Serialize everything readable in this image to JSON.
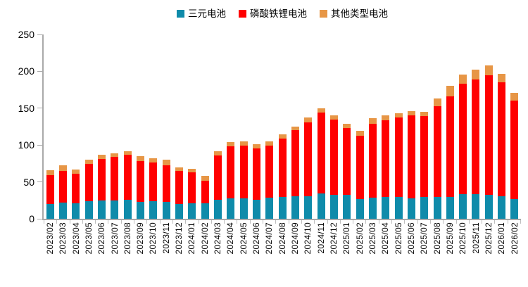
{
  "chart_data": {
    "type": "bar",
    "stacked": true,
    "title": "",
    "xlabel": "",
    "ylabel": "",
    "ylim": [
      0,
      250
    ],
    "yticks": [
      0,
      50,
      100,
      150,
      200,
      250
    ],
    "grid": false,
    "legend_position": "top-center",
    "axis_color": "#a9a9a9",
    "text_color": "#000000",
    "categories": [
      "2023/02",
      "2023/03",
      "2023/04",
      "2023/05",
      "2023/06",
      "2023/07",
      "2023/08",
      "2023/09",
      "2023/10",
      "2023/11",
      "2023/12",
      "2024/01",
      "2024/02",
      "2024/03",
      "2024/04",
      "2024/05",
      "2024/06",
      "2024/07",
      "2024/08",
      "2024/09",
      "2024/10",
      "2024/11",
      "2024/12",
      "2025/01",
      "2025/02",
      "2025/03",
      "2025/04",
      "2025/05",
      "2025/06",
      "2025/07",
      "2025/08",
      "2025/09",
      "2025/10",
      "2025/11",
      "2025/12",
      "2026/01",
      "2026/02"
    ],
    "series": [
      {
        "name": "三元电池",
        "color": "#0f8baa",
        "values": [
          20,
          22,
          21,
          24,
          25,
          25,
          26,
          23,
          24,
          23,
          20,
          21,
          21,
          26,
          28,
          28,
          26,
          29,
          30,
          31,
          31,
          34,
          32,
          32,
          27,
          29,
          30,
          30,
          28,
          30,
          30,
          30,
          33,
          33,
          32,
          31,
          27
        ]
      },
      {
        "name": "磷酸铁锂电池",
        "color": "#ff0000",
        "values": [
          39,
          43,
          40,
          50,
          56,
          59,
          61,
          55,
          52,
          50,
          45,
          42,
          31,
          60,
          70,
          71,
          69,
          70,
          79,
          89,
          100,
          110,
          103,
          91,
          86,
          100,
          104,
          107,
          112,
          109,
          123,
          136,
          150,
          156,
          163,
          154,
          133
        ]
      },
      {
        "name": "其他类型电池",
        "color": "#e79646",
        "values": [
          7,
          8,
          6,
          6,
          6,
          5,
          5,
          7,
          6,
          7,
          5,
          5,
          6,
          6,
          6,
          6,
          6,
          6,
          6,
          5,
          6,
          6,
          5,
          6,
          6,
          7,
          6,
          6,
          6,
          6,
          10,
          14,
          13,
          13,
          13,
          12,
          11
        ]
      }
    ]
  }
}
